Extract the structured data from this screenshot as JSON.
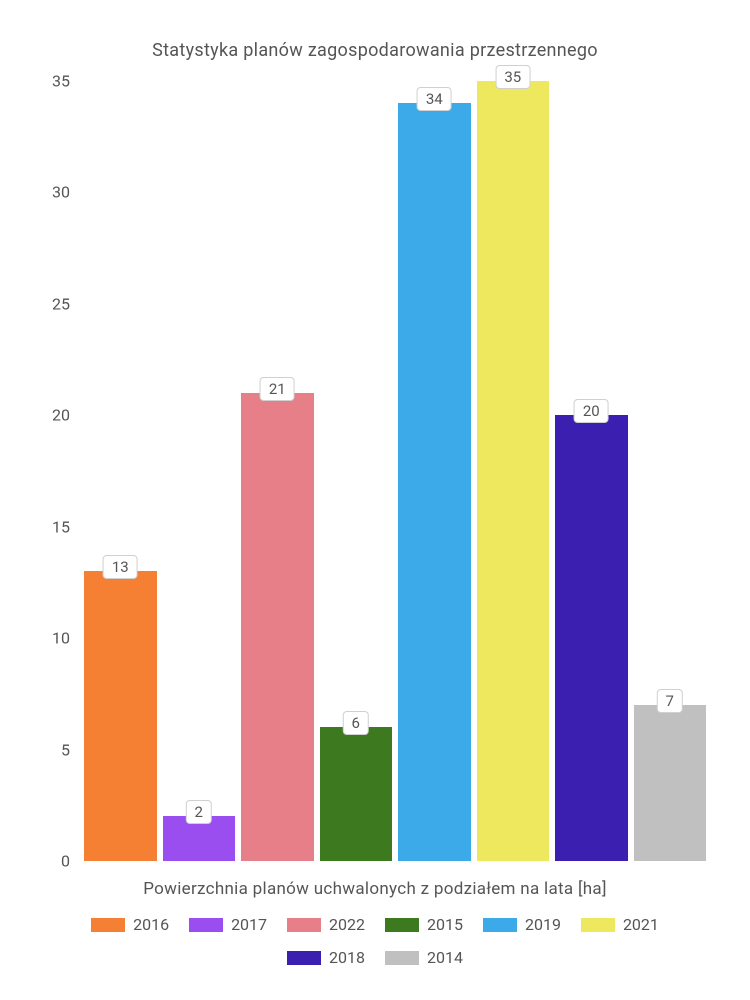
{
  "chart": {
    "type": "bar",
    "title": "Statystyka planów zagospodarowania przestrzennego",
    "title_fontsize": 18,
    "title_color": "#555555",
    "x_label": "Powierzchnia planów uchwalonych z podziałem na lata [ha]",
    "label_fontsize": 17,
    "label_color": "#555555",
    "background_color": "#ffffff",
    "ylim": [
      0,
      35
    ],
    "yticks": [
      0,
      5,
      10,
      15,
      20,
      25,
      30,
      35
    ],
    "ytick_fontsize": 16,
    "series": [
      {
        "name": "2016",
        "value": 13,
        "color": "#f58033"
      },
      {
        "name": "2017",
        "value": 2,
        "color": "#9a4ef0"
      },
      {
        "name": "2022",
        "value": 21,
        "color": "#e77f89"
      },
      {
        "name": "2015",
        "value": 6,
        "color": "#3d7a1f"
      },
      {
        "name": "2019",
        "value": 34,
        "color": "#3ca9e8"
      },
      {
        "name": "2021",
        "value": 35,
        "color": "#eee85f"
      },
      {
        "name": "2018",
        "value": 20,
        "color": "#3a1fb0"
      },
      {
        "name": "2014",
        "value": 7,
        "color": "#c0c0c0"
      }
    ],
    "bar_label_bg": "#ffffff",
    "bar_label_border": "#d0d0d0",
    "bar_label_fontsize": 15,
    "legend_fontsize": 16
  }
}
